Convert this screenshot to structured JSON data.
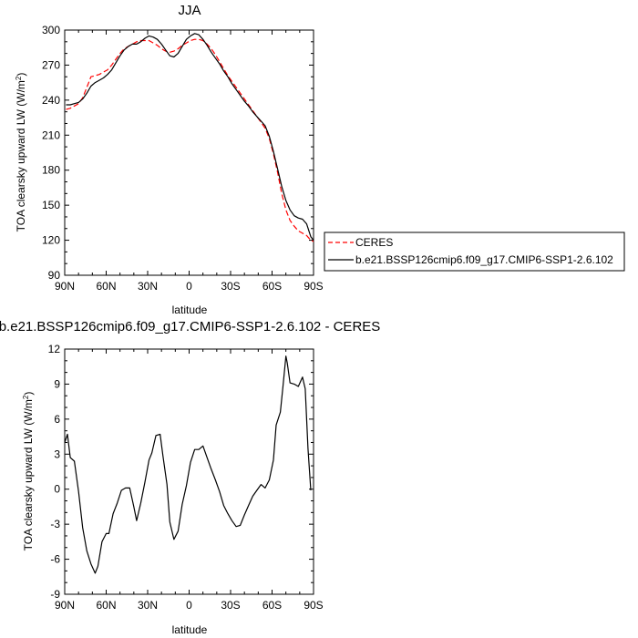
{
  "chart_data": [
    {
      "type": "line",
      "title": "JJA",
      "xlabel": "latitude",
      "ylabel": "TOA clearsky upward LW (W/m",
      "ylabel_sup": "2",
      "ylabel_close": ")",
      "x_ticks": [
        90,
        60,
        30,
        0,
        -30,
        -60,
        -90
      ],
      "x_tick_labels": [
        "90N",
        "60N",
        "30N",
        "0",
        "30S",
        "60S",
        "90S"
      ],
      "xlim": [
        90,
        -90
      ],
      "y_ticks": [
        90,
        120,
        150,
        180,
        210,
        240,
        270,
        300
      ],
      "y_tick_labels": [
        "90",
        "120",
        "150",
        "180",
        "210",
        "240",
        "270",
        "300"
      ],
      "ylim": [
        90,
        300
      ],
      "legend_placement": "right",
      "series": [
        {
          "name": "CERES",
          "color": "#ff0000",
          "dash": "dashed",
          "x": [
            89,
            86,
            83,
            80,
            77,
            74,
            71,
            68,
            65,
            62,
            59,
            56,
            53,
            50,
            47,
            44,
            41,
            38,
            35,
            32,
            29,
            26,
            23,
            20,
            17,
            14,
            11,
            8,
            5,
            2,
            -1,
            -4,
            -7,
            -10,
            -13,
            -16,
            -19,
            -22,
            -25,
            -28,
            -31,
            -34,
            -37,
            -40,
            -43,
            -46,
            -49,
            -52,
            -55,
            -58,
            -61,
            -64,
            -67,
            -70,
            -73,
            -76,
            -79,
            -82,
            -85,
            -88,
            -90
          ],
          "y": [
            232,
            233,
            235,
            237,
            242,
            251,
            260,
            261,
            262,
            264,
            266,
            270,
            275,
            280,
            284,
            286,
            288,
            290,
            291,
            291,
            291,
            289,
            287,
            284,
            282,
            281,
            282,
            284,
            287,
            289,
            291,
            292,
            292,
            291,
            288,
            284,
            279,
            273,
            267,
            261,
            256,
            251,
            246,
            241,
            236,
            231,
            226,
            221,
            216,
            207,
            194,
            178,
            160,
            146,
            137,
            132,
            128,
            126,
            124,
            120,
            119
          ]
        },
        {
          "name": "b.e21.BSSP126cmip6.f09_g17.CMIP6-SSP1-2.6.102",
          "color": "#000000",
          "dash": "solid",
          "x": [
            89,
            86,
            83,
            80,
            77,
            74,
            71,
            68,
            65,
            62,
            59,
            56,
            53,
            50,
            47,
            44,
            41,
            38,
            35,
            32,
            29,
            26,
            23,
            20,
            17,
            14,
            11,
            8,
            5,
            2,
            -1,
            -4,
            -7,
            -10,
            -13,
            -16,
            -19,
            -22,
            -25,
            -28,
            -31,
            -34,
            -37,
            -40,
            -43,
            -46,
            -49,
            -52,
            -55,
            -58,
            -61,
            -64,
            -67,
            -70,
            -73,
            -76,
            -79,
            -82,
            -85,
            -88,
            -90
          ],
          "y": [
            236,
            236,
            237,
            238,
            241,
            246,
            252,
            255,
            257,
            259,
            262,
            266,
            272,
            278,
            283,
            286,
            288,
            288,
            290,
            293,
            295,
            294,
            292,
            288,
            283,
            278,
            277,
            280,
            286,
            292,
            295,
            297,
            296,
            292,
            287,
            281,
            276,
            271,
            265,
            260,
            254,
            249,
            244,
            239,
            235,
            230,
            226,
            222,
            218,
            209,
            196,
            181,
            166,
            154,
            146,
            141,
            139,
            138,
            134,
            123,
            120
          ]
        }
      ]
    },
    {
      "type": "line",
      "title": "b.e21.BSSP126cmip6.f09_g17.CMIP6-SSP1-2.6.102 - CERES",
      "xlabel": "latitude",
      "ylabel": "TOA clearsky upward LW (W/m",
      "ylabel_sup": "2",
      "ylabel_close": ")",
      "x_ticks": [
        90,
        60,
        30,
        0,
        -30,
        -60,
        -90
      ],
      "x_tick_labels": [
        "90N",
        "60N",
        "30N",
        "0",
        "30S",
        "60S",
        "90S"
      ],
      "xlim": [
        90,
        -90
      ],
      "y_ticks": [
        -9,
        -6,
        -3,
        0,
        3,
        6,
        9,
        12
      ],
      "y_tick_labels": [
        "-9",
        "-6",
        "-3",
        "0",
        "3",
        "6",
        "9",
        "12"
      ],
      "ylim": [
        -9,
        12
      ],
      "series": [
        {
          "color": "#000000",
          "dash": "solid",
          "x": [
            90,
            88,
            86,
            83,
            80,
            77,
            74,
            71,
            68,
            66,
            63,
            60,
            58,
            55,
            52,
            49,
            46,
            43,
            40,
            38,
            35,
            32,
            29,
            27,
            24,
            21,
            19,
            16,
            14,
            11,
            8,
            5,
            2,
            -1,
            -4,
            -7,
            -10,
            -13,
            -16,
            -19,
            -22,
            -25,
            -28,
            -31,
            -34,
            -37,
            -40,
            -43,
            -46,
            -49,
            -52,
            -55,
            -58,
            -61,
            -63,
            -66,
            -68,
            -70,
            -71,
            -73,
            -76,
            -79,
            -82,
            -84,
            -86,
            -88
          ],
          "y": [
            4.0,
            4.7,
            2.7,
            2.4,
            -0.2,
            -3.3,
            -5.3,
            -6.4,
            -7.2,
            -6.6,
            -4.5,
            -3.8,
            -3.8,
            -2.1,
            -1.2,
            -0.1,
            0.1,
            0.1,
            -1.5,
            -2.7,
            -1.2,
            0.6,
            2.5,
            3.1,
            4.6,
            4.7,
            2.9,
            0.4,
            -2.8,
            -4.3,
            -3.6,
            -1.3,
            0.3,
            2.3,
            3.4,
            3.4,
            3.7,
            2.7,
            1.7,
            0.8,
            -0.2,
            -1.4,
            -2.1,
            -2.7,
            -3.2,
            -3.1,
            -2.2,
            -1.4,
            -0.6,
            -0.1,
            0.4,
            0.1,
            0.8,
            2.5,
            5.5,
            6.6,
            8.9,
            11.4,
            10.8,
            9.1,
            9.0,
            8.8,
            9.6,
            8.6,
            3.5,
            -0.1
          ]
        }
      ]
    }
  ]
}
